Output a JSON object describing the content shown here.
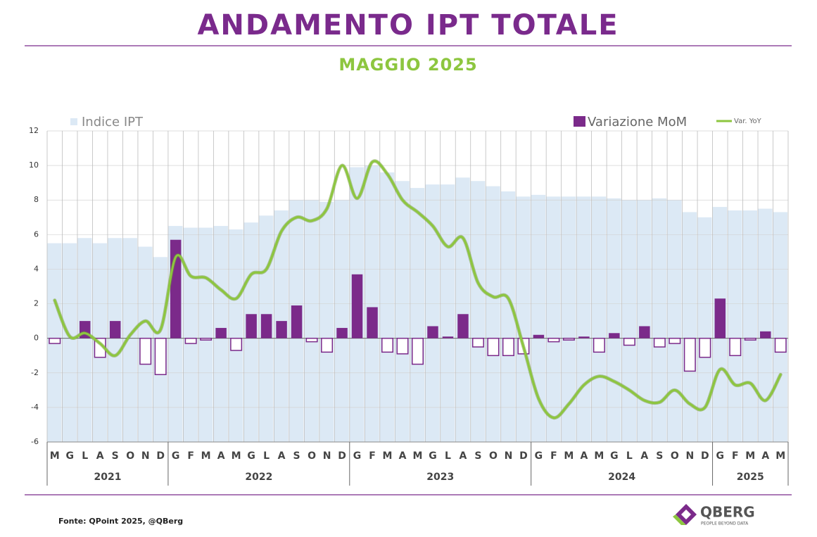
{
  "chart_data": {
    "type": "combo",
    "title": "ANDAMENTO IPT TOTALE",
    "subtitle": "MAGGIO 2025",
    "categories": [
      "M",
      "G",
      "L",
      "A",
      "S",
      "O",
      "N",
      "D",
      "G",
      "F",
      "M",
      "A",
      "M",
      "G",
      "L",
      "A",
      "S",
      "O",
      "N",
      "D",
      "G",
      "F",
      "M",
      "A",
      "M",
      "G",
      "L",
      "A",
      "S",
      "O",
      "N",
      "D",
      "G",
      "F",
      "M",
      "A",
      "M",
      "G",
      "L",
      "A",
      "S",
      "O",
      "N",
      "D",
      "G",
      "F",
      "M",
      "A",
      "M"
    ],
    "years": [
      "2021",
      "2022",
      "2023",
      "2024",
      "2025"
    ],
    "series": [
      {
        "name": "Indice IPT",
        "type": "bar",
        "color": "#dce9f5",
        "values": [
          5.5,
          5.5,
          5.8,
          5.5,
          5.8,
          5.8,
          5.3,
          4.7,
          6.5,
          6.4,
          6.4,
          6.5,
          6.3,
          6.7,
          7.1,
          7.4,
          8.0,
          8.0,
          7.9,
          8.0,
          9.9,
          10.0,
          9.6,
          9.1,
          8.7,
          8.9,
          8.9,
          9.3,
          9.1,
          8.8,
          8.5,
          8.2,
          8.3,
          8.2,
          8.2,
          8.2,
          8.2,
          8.1,
          8.0,
          8.0,
          8.1,
          8.0,
          7.3,
          7.0,
          7.6,
          7.4,
          7.4,
          7.5,
          7.3
        ]
      },
      {
        "name": "Variazione MoM",
        "type": "bar",
        "color": "#7b2a8a",
        "values": [
          -0.3,
          0,
          1.0,
          -1.1,
          1.0,
          0,
          -1.5,
          -2.1,
          5.7,
          -0.3,
          -0.1,
          0.6,
          -0.7,
          1.4,
          1.4,
          1.0,
          1.9,
          -0.2,
          -0.8,
          0.6,
          3.7,
          1.8,
          -0.8,
          -0.9,
          -1.5,
          0.7,
          0.1,
          1.4,
          -0.5,
          -1.0,
          -1.0,
          -0.9,
          0.2,
          -0.2,
          -0.1,
          0.1,
          -0.8,
          0.3,
          -0.4,
          0.7,
          -0.5,
          -0.3,
          -1.9,
          -1.1,
          2.3,
          -1.0,
          -0.1,
          0.4,
          -0.8
        ]
      },
      {
        "name": "Var. YoY",
        "type": "line",
        "color": "#8dc63f",
        "values": [
          2.2,
          0.1,
          0.3,
          -0.3,
          -1.0,
          0.2,
          1.0,
          0.5,
          4.7,
          3.6,
          3.5,
          2.8,
          2.3,
          3.7,
          4.0,
          6.2,
          7.0,
          6.8,
          7.5,
          10.0,
          8.1,
          10.2,
          9.5,
          8.0,
          7.3,
          6.5,
          5.3,
          5.8,
          3.2,
          2.4,
          2.3,
          -0.5,
          -3.5,
          -4.6,
          -3.8,
          -2.7,
          -2.2,
          -2.5,
          -3.0,
          -3.6,
          -3.7,
          -3.0,
          -3.8,
          -4.0,
          -1.8,
          -2.7,
          -2.6,
          -3.6,
          -2.1
        ]
      }
    ],
    "ylim": [
      -6,
      12
    ],
    "yticks": [
      -6,
      -4,
      -2,
      0,
      2,
      4,
      6,
      8,
      10,
      12
    ],
    "grid": true,
    "source": "Fonte: QPoint 2025, @QBerg",
    "logo": {
      "name": "QBERG",
      "tagline": "PEOPLE BEYOND DATA"
    }
  }
}
